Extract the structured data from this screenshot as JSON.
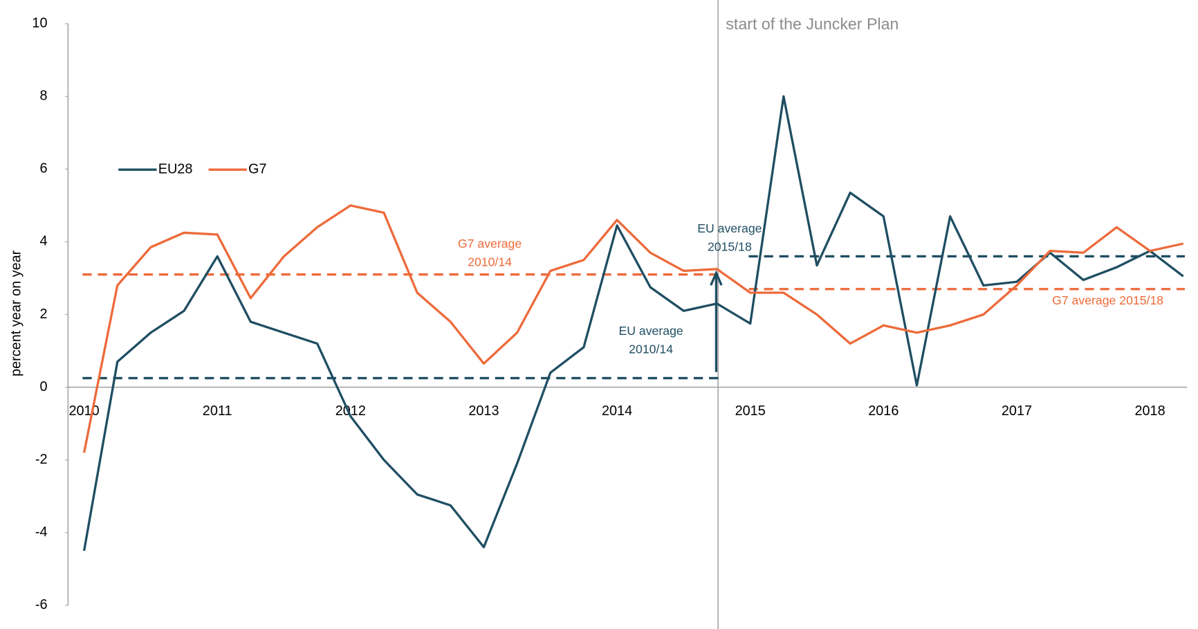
{
  "chart_data": {
    "type": "line",
    "y_label": "percent year on year",
    "categories": [
      "2010",
      null,
      null,
      null,
      "2011",
      null,
      null,
      null,
      "2012",
      null,
      null,
      null,
      "2013",
      null,
      null,
      null,
      "2014",
      null,
      null,
      null,
      "2015",
      null,
      null,
      null,
      "2016",
      null,
      null,
      null,
      "2017",
      null,
      null,
      null,
      "2018",
      null
    ],
    "series": [
      {
        "name": "EU28",
        "color": "#1f4e63",
        "values": [
          -4.5,
          0.7,
          1.5,
          2.1,
          3.6,
          1.8,
          1.5,
          1.2,
          -0.8,
          -2.0,
          -2.95,
          -3.25,
          -4.4,
          -2.1,
          0.4,
          1.1,
          4.45,
          2.75,
          2.1,
          2.3,
          1.75,
          8.0,
          3.35,
          5.35,
          4.7,
          0.05,
          4.7,
          2.8,
          2.9,
          3.7,
          2.95,
          3.3,
          3.75,
          3.05
        ]
      },
      {
        "name": "G7",
        "color": "#ed6a3a",
        "values": [
          -1.8,
          2.8,
          3.85,
          4.25,
          4.2,
          2.45,
          3.6,
          4.4,
          5.0,
          4.8,
          2.6,
          1.8,
          0.65,
          1.5,
          3.2,
          3.5,
          4.6,
          3.7,
          3.2,
          3.25,
          2.6,
          2.6,
          2.0,
          1.2,
          1.7,
          1.5,
          1.7,
          2.0,
          2.8,
          3.75,
          3.7,
          4.4,
          3.75,
          3.95
        ]
      }
    ],
    "averages": [
      {
        "label": [
          "G7 average",
          "2010/14"
        ],
        "value": 3.1,
        "color": "#ed6a3a"
      },
      {
        "label": [
          "EU average",
          "2010/14"
        ],
        "value": 0.25,
        "color": "#1f4e63"
      },
      {
        "label": [
          "EU average",
          "2015/18"
        ],
        "value": 3.6,
        "color": "#1f4e63"
      },
      {
        "label": [
          "G7 average 2015/18"
        ],
        "value": 2.7,
        "color": "#ed6a3a"
      }
    ],
    "annotation": "start of the Juncker Plan",
    "ylim": [
      -6,
      10
    ],
    "yticks": [
      -6,
      -4,
      -2,
      0,
      2,
      4,
      6,
      8,
      10
    ]
  }
}
